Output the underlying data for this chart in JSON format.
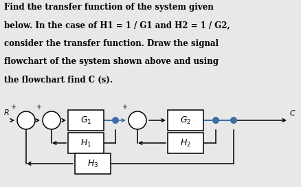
{
  "text_lines": [
    "Find the transfer function of the system given",
    "below. In the case of H1 = 1 / G1 and H2 = 1 / G2,",
    "consider the transfer function. Draw the signal",
    "flowchart of the system shown above and using",
    "the flowchart find C (s)."
  ],
  "text_fontsize": 8.5,
  "bg_color": "#e8e8e8",
  "dot_color": "#3a6ea5",
  "label_R": "R",
  "label_C": "C",
  "label_G1": "$G_1$",
  "label_G2": "$G_2$",
  "label_H1": "$H_1$",
  "label_H2": "$H_2$",
  "label_H3": "$H_3$",
  "plus_sign": "+"
}
